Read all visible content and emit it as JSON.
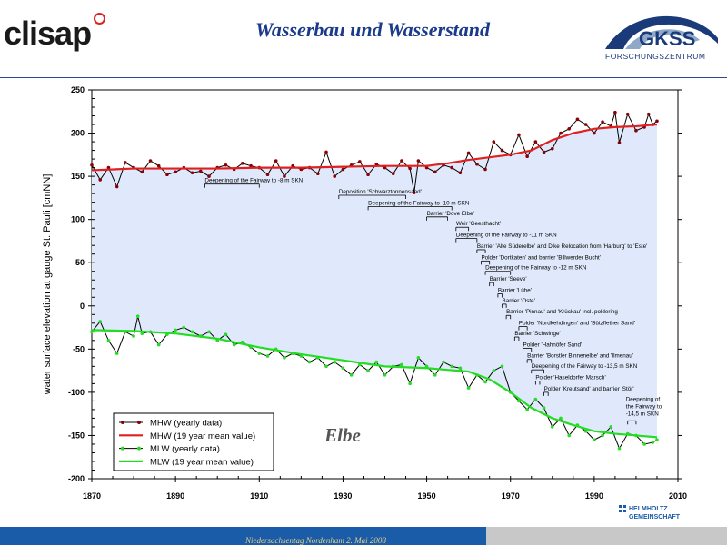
{
  "header": {
    "logo_left": "clisap",
    "title": "Wasserbau und Wasserstand",
    "logo_right": "GKSS",
    "logo_right_sub": "FORSCHUNGSZENTRUM"
  },
  "footer": {
    "text": "Niedersachsentag Nordenham 2. Mai 2008",
    "helmholtz_line1": "HELMHOLTZ",
    "helmholtz_line2": "GEMEINSCHAFT"
  },
  "colors": {
    "band": "#dfe9fb",
    "mhw_yearly": "#8b0000",
    "mhw_mean": "#e02020",
    "mlw_yearly": "#1a6a1a",
    "mlw_mean": "#22dd22",
    "title_blue": "#1a3a8a"
  },
  "chart_data": {
    "type": "line",
    "ylabel": "water surface elevation at gauge St. Pauli [cmNN]",
    "xlabel": "",
    "xlim": [
      1870,
      2010
    ],
    "ylim": [
      -200,
      250
    ],
    "x_ticks": [
      1870,
      1890,
      1910,
      1930,
      1950,
      1970,
      1990,
      2010
    ],
    "y_ticks": [
      -200,
      -150,
      -100,
      -50,
      0,
      50,
      100,
      150,
      200,
      250
    ],
    "grid": false,
    "legend_position": "bottom-left",
    "annotation_text": "Elbe",
    "series": [
      {
        "name": "MHW (yearly data)",
        "style": "line-markers",
        "x": [
          1870,
          1872,
          1874,
          1876,
          1878,
          1880,
          1882,
          1884,
          1886,
          1888,
          1890,
          1892,
          1894,
          1896,
          1898,
          1900,
          1902,
          1904,
          1906,
          1908,
          1910,
          1912,
          1914,
          1916,
          1918,
          1920,
          1922,
          1924,
          1926,
          1928,
          1930,
          1932,
          1934,
          1936,
          1938,
          1940,
          1942,
          1944,
          1946,
          1947,
          1948,
          1950,
          1952,
          1954,
          1956,
          1958,
          1960,
          1962,
          1964,
          1966,
          1968,
          1970,
          1972,
          1974,
          1976,
          1978,
          1980,
          1982,
          1984,
          1986,
          1988,
          1990,
          1992,
          1994,
          1995,
          1996,
          1998,
          2000,
          2002,
          2003,
          2004,
          2005
        ],
        "y": [
          163,
          146,
          160,
          138,
          166,
          160,
          155,
          168,
          162,
          152,
          155,
          160,
          154,
          156,
          150,
          160,
          163,
          158,
          165,
          162,
          160,
          152,
          168,
          150,
          162,
          158,
          160,
          153,
          178,
          150,
          158,
          163,
          167,
          152,
          164,
          160,
          153,
          168,
          159,
          131,
          168,
          160,
          155,
          163,
          160,
          154,
          177,
          164,
          158,
          190,
          180,
          175,
          198,
          173,
          190,
          178,
          182,
          200,
          205,
          216,
          210,
          200,
          213,
          208,
          224,
          189,
          222,
          203,
          207,
          222,
          210,
          214
        ]
      },
      {
        "name": "MHW (19 year mean value)",
        "style": "line",
        "x": [
          1870,
          1880,
          1890,
          1900,
          1910,
          1920,
          1930,
          1940,
          1950,
          1955,
          1960,
          1965,
          1970,
          1975,
          1980,
          1985,
          1990,
          1995,
          2000,
          2005
        ],
        "y": [
          157,
          159,
          159,
          159,
          160,
          160,
          161,
          162,
          162,
          165,
          169,
          172,
          175,
          180,
          192,
          200,
          205,
          207,
          208,
          210
        ]
      },
      {
        "name": "MLW (yearly data)",
        "style": "line-markers",
        "x": [
          1870,
          1872,
          1874,
          1876,
          1878,
          1880,
          1881,
          1882,
          1884,
          1886,
          1888,
          1890,
          1892,
          1894,
          1896,
          1898,
          1900,
          1902,
          1904,
          1906,
          1908,
          1910,
          1912,
          1914,
          1916,
          1918,
          1920,
          1922,
          1924,
          1926,
          1928,
          1930,
          1932,
          1934,
          1936,
          1938,
          1940,
          1942,
          1944,
          1946,
          1948,
          1950,
          1952,
          1954,
          1956,
          1958,
          1960,
          1962,
          1964,
          1966,
          1968,
          1970,
          1972,
          1974,
          1976,
          1978,
          1980,
          1982,
          1984,
          1986,
          1988,
          1990,
          1992,
          1994,
          1996,
          1998,
          2000,
          2002,
          2004,
          2005
        ],
        "y": [
          -30,
          -18,
          -40,
          -55,
          -30,
          -35,
          -12,
          -32,
          -30,
          -45,
          -33,
          -28,
          -25,
          -30,
          -35,
          -30,
          -40,
          -33,
          -45,
          -42,
          -48,
          -55,
          -58,
          -50,
          -60,
          -55,
          -58,
          -65,
          -60,
          -70,
          -65,
          -72,
          -80,
          -68,
          -75,
          -65,
          -80,
          -70,
          -68,
          -90,
          -60,
          -70,
          -80,
          -65,
          -70,
          -72,
          -95,
          -80,
          -88,
          -75,
          -70,
          -100,
          -110,
          -120,
          -108,
          -118,
          -140,
          -130,
          -150,
          -138,
          -145,
          -155,
          -150,
          -140,
          -165,
          -148,
          -150,
          -160,
          -158,
          -155
        ]
      },
      {
        "name": "MLW (19 year mean value)",
        "style": "line",
        "x": [
          1870,
          1880,
          1890,
          1900,
          1910,
          1920,
          1930,
          1940,
          1950,
          1955,
          1960,
          1965,
          1970,
          1975,
          1980,
          1985,
          1990,
          1995,
          2000,
          2005
        ],
        "y": [
          -28,
          -29,
          -32,
          -38,
          -48,
          -56,
          -63,
          -70,
          -72,
          -74,
          -76,
          -85,
          -100,
          -118,
          -130,
          -138,
          -145,
          -148,
          -150,
          -152
        ]
      }
    ],
    "events": [
      {
        "label": "Deepening of the Fairway to -8 m SKN",
        "x0": 1897,
        "x1": 1910,
        "y": 141
      },
      {
        "label": "Deposition 'Schwarztonnensand'",
        "x0": 1929,
        "x1": 1945,
        "y": 128
      },
      {
        "label": "Deepening of the Fairway to -10 m SKN",
        "x0": 1936,
        "x1": 1956,
        "y": 115
      },
      {
        "label": "Barrier 'Dove Elbe'",
        "x0": 1950,
        "x1": 1955,
        "y": 103
      },
      {
        "label": "Weir 'Geesthacht'",
        "x0": 1957,
        "x1": 1960,
        "y": 91
      },
      {
        "label": "Deepening of the Fairway to -11 m SKN",
        "x0": 1957,
        "x1": 1962,
        "y": 78
      },
      {
        "label": "Barrier 'Alte Süderelbe' and Dike Relocation from 'Harburg' to 'Este'",
        "x0": 1962,
        "x1": 1964,
        "y": 65
      },
      {
        "label": "Polder 'Dortkaten' and barrier 'Billwerder Bucht'",
        "x0": 1963,
        "x1": 1965,
        "y": 52
      },
      {
        "label": "Deepening of the Fairway to -12 m SKN",
        "x0": 1964,
        "x1": 1970,
        "y": 40
      },
      {
        "label": "Barrier 'Seeve'",
        "x0": 1965,
        "x1": 1966,
        "y": 27
      },
      {
        "label": "Barrier 'Lühe'",
        "x0": 1967,
        "x1": 1968,
        "y": 14
      },
      {
        "label": "Barrier 'Oste'",
        "x0": 1968,
        "x1": 1969,
        "y": 2
      },
      {
        "label": "Barrier 'Pinnau' and 'Krückau' incl. poldering",
        "x0": 1969,
        "x1": 1970,
        "y": -11
      },
      {
        "label": "Polder 'Nordkehdingen' and 'Bützflether Sand'",
        "x0": 1972,
        "x1": 1974,
        "y": -24
      },
      {
        "label": "Barrier 'Schwinge'",
        "x0": 1971,
        "x1": 1972,
        "y": -36
      },
      {
        "label": "Polder 'Hahnöfer Sand'",
        "x0": 1973,
        "x1": 1975,
        "y": -49
      },
      {
        "label": "Barrier 'Borstler Binnenelbe' and 'Ilmenau'",
        "x0": 1974,
        "x1": 1975,
        "y": -62
      },
      {
        "label": "Deepening of the Fairway to -13,5 m SKN",
        "x0": 1975,
        "x1": 1978,
        "y": -74
      },
      {
        "label": "Polder 'Haseldorfer Marsch'",
        "x0": 1976,
        "x1": 1977,
        "y": -87
      },
      {
        "label": "Polder 'Kreutsand' and barrier 'Stör'",
        "x0": 1978,
        "x1": 1979,
        "y": -100
      },
      {
        "label": "Deepening of the Fairway to -14,5 m SKN",
        "x0": 1998,
        "x1": 2000,
        "y": -133
      }
    ]
  }
}
